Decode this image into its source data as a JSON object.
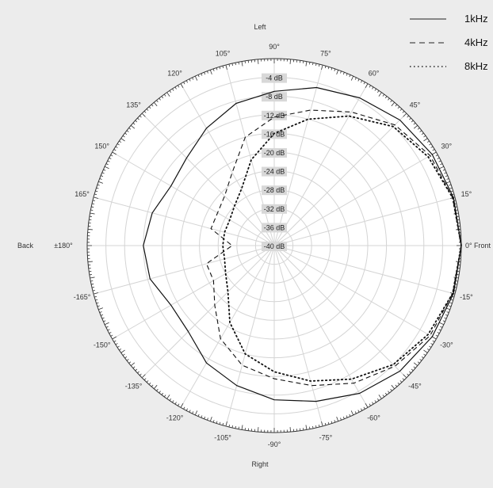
{
  "chart_data": {
    "type": "line",
    "subtype": "polar",
    "radial_axis": {
      "unit": "dB",
      "range": [
        -40,
        0
      ],
      "grid": true,
      "tick_labels": [
        "-4 dB",
        "-8 dB",
        "-12 dB",
        "-16 dB",
        "-20 dB",
        "-24 dB",
        "-28 dB",
        "-32 dB",
        "-36 dB",
        "-40 dB"
      ]
    },
    "angular_axis": {
      "tick_labels": [
        {
          "angle": 90,
          "text": "90°"
        },
        {
          "angle": 75,
          "text": "75°"
        },
        {
          "angle": 60,
          "text": "60°"
        },
        {
          "angle": 45,
          "text": "45°"
        },
        {
          "angle": 30,
          "text": "30°"
        },
        {
          "angle": 15,
          "text": "15°"
        },
        {
          "angle": 0,
          "text": "0°"
        },
        {
          "angle": -15,
          "text": "-15°"
        },
        {
          "angle": -30,
          "text": "-30°"
        },
        {
          "angle": -45,
          "text": "-45°"
        },
        {
          "angle": -60,
          "text": "-60°"
        },
        {
          "angle": -75,
          "text": "-75°"
        },
        {
          "angle": -90,
          "text": "-90°"
        },
        {
          "angle": -105,
          "text": "-105°"
        },
        {
          "angle": -120,
          "text": "-120°"
        },
        {
          "angle": -135,
          "text": "-135°"
        },
        {
          "angle": -150,
          "text": "-150°"
        },
        {
          "angle": -165,
          "text": "-165°"
        },
        {
          "angle": 180,
          "text": "±180°"
        },
        {
          "angle": 165,
          "text": "165°"
        },
        {
          "angle": 150,
          "text": "150°"
        },
        {
          "angle": 135,
          "text": "135°"
        },
        {
          "angle": 120,
          "text": "120°"
        },
        {
          "angle": 105,
          "text": "105°"
        }
      ],
      "direction_labels": {
        "top": "Left",
        "bottom": "Right",
        "left": "Back",
        "right": "Front"
      }
    },
    "legend_position": "top-right",
    "series": [
      {
        "name": "1kHz",
        "style": "solid",
        "theta": [
          0,
          15,
          30,
          45,
          60,
          75,
          90,
          105,
          120,
          135,
          150,
          165,
          180,
          -165,
          -150,
          -135,
          -120,
          -105,
          -90,
          -75,
          -60,
          -45,
          -30,
          -15
        ],
        "values": [
          0,
          -0.3,
          -1,
          -2,
          -3.5,
          -5,
          -7,
          -8.5,
          -11,
          -13.5,
          -14.5,
          -13,
          -12,
          -12.5,
          -14.5,
          -14,
          -11,
          -9,
          -7,
          -5.5,
          -3.5,
          -2,
          -1,
          -0.3
        ]
      },
      {
        "name": "4kHz",
        "style": "dashed",
        "theta": [
          0,
          15,
          30,
          45,
          60,
          75,
          90,
          105,
          120,
          135,
          150,
          165,
          180,
          -165,
          -150,
          -135,
          -120,
          -105,
          -90,
          -75,
          -60,
          -45,
          -30,
          -15
        ],
        "values": [
          0,
          -0.5,
          -1.5,
          -3.5,
          -7,
          -10,
          -12.5,
          -16,
          -22,
          -25,
          -26,
          -26,
          -31,
          -25,
          -25,
          -22,
          -17,
          -13.5,
          -11.5,
          -9,
          -6,
          -3.5,
          -1.5,
          -0.5
        ]
      },
      {
        "name": "8kHz",
        "style": "dotted",
        "theta": [
          0,
          15,
          30,
          45,
          60,
          75,
          90,
          105,
          120,
          135,
          150,
          165,
          180,
          -165,
          -150,
          -135,
          -120,
          -105,
          -90,
          -75,
          -60,
          -45,
          -30,
          -15
        ],
        "values": [
          0,
          -0.5,
          -2,
          -4,
          -8,
          -12,
          -16,
          -21,
          -26,
          -28,
          -29,
          -29,
          -29,
          -29,
          -28,
          -26,
          -21,
          -16,
          -13,
          -10,
          -7,
          -4,
          -2,
          -0.5
        ]
      }
    ]
  }
}
